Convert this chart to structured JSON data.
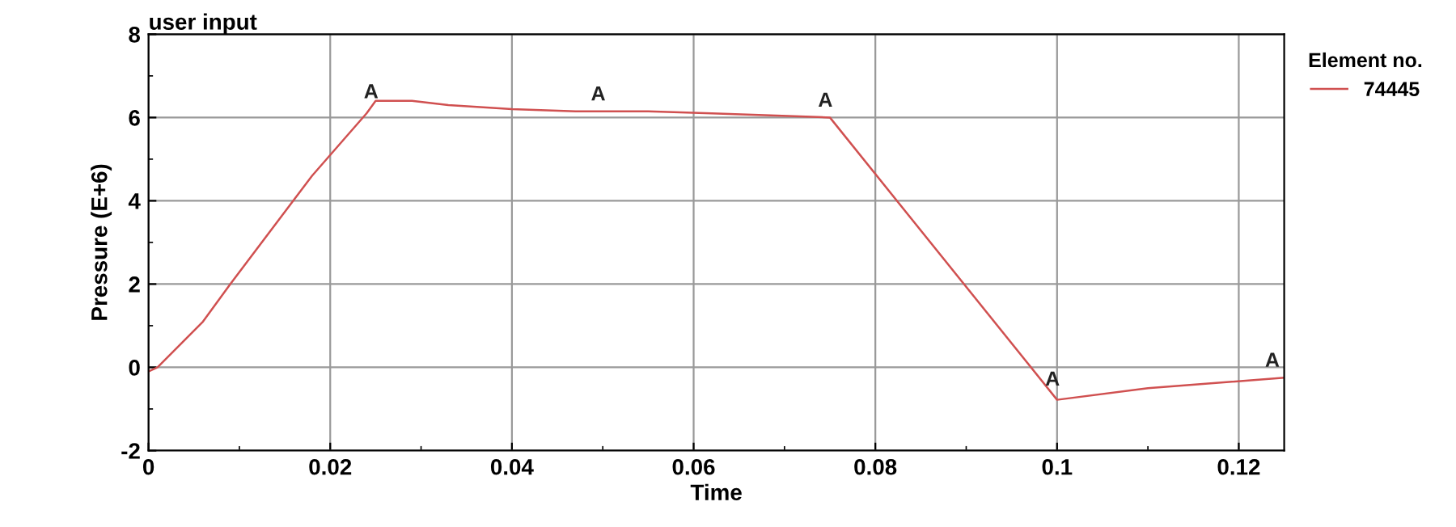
{
  "chart_data": {
    "type": "line",
    "title": "user input",
    "xlabel": "Time",
    "ylabel": "Pressure (E+6)",
    "legend_title": "Element no.",
    "series": [
      {
        "name": "74445",
        "color": "#d05050",
        "x": [
          0,
          0.001,
          0.006,
          0.009,
          0.018,
          0.024,
          0.025,
          0.029,
          0.033,
          0.04,
          0.047,
          0.055,
          0.062,
          0.075,
          0.1,
          0.11,
          0.125
        ],
        "values": [
          -0.1,
          0,
          1.1,
          2.0,
          4.6,
          6.1,
          6.4,
          6.4,
          6.3,
          6.2,
          6.15,
          6.15,
          6.1,
          6.0,
          -0.78,
          -0.5,
          -0.25
        ]
      }
    ],
    "annotations": [
      {
        "text": "A",
        "x": 0.0245,
        "y": 6.2
      },
      {
        "text": "A",
        "x": 0.0495,
        "y": 6.15
      },
      {
        "text": "A",
        "x": 0.0745,
        "y": 6.0
      },
      {
        "text": "A",
        "x": 0.0995,
        "y": -0.7
      },
      {
        "text": "A",
        "x": 0.1245,
        "y": -0.25
      }
    ],
    "xlim": [
      0,
      0.125
    ],
    "xticks": [
      0,
      0.02,
      0.04,
      0.06,
      0.08,
      0.1,
      0.12
    ],
    "ylim": [
      -2,
      8
    ],
    "yticks": [
      -2,
      0,
      2,
      4,
      6,
      8
    ],
    "grid": true,
    "legend": "right",
    "line_style": "solid",
    "marker": "none"
  }
}
